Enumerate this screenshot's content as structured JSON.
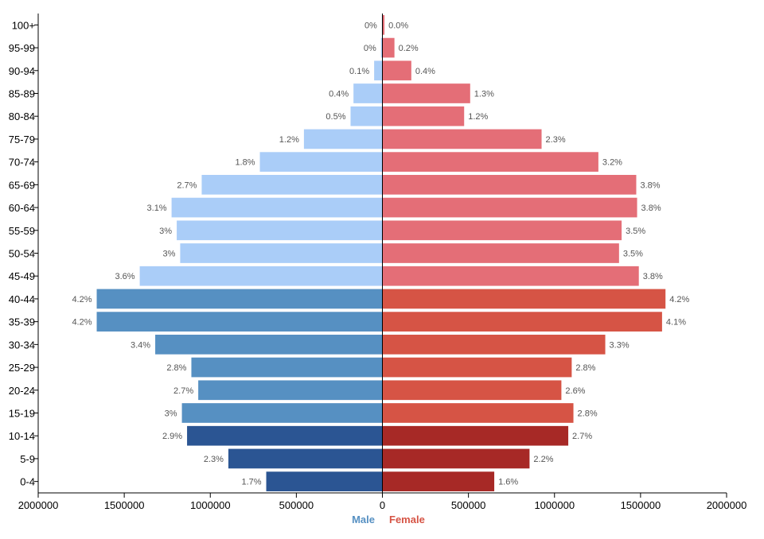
{
  "chart_data": {
    "type": "bar",
    "orientation": "horizontal",
    "categories": [
      "100+",
      "95-99",
      "90-94",
      "85-89",
      "80-84",
      "75-79",
      "70-74",
      "65-69",
      "60-64",
      "55-59",
      "50-54",
      "45-49",
      "40-44",
      "35-39",
      "30-34",
      "25-29",
      "20-24",
      "15-19",
      "10-14",
      "5-9",
      "0-4"
    ],
    "series": [
      {
        "name": "Male",
        "values": [
          3000,
          8000,
          48000,
          168000,
          185000,
          456000,
          712000,
          1050000,
          1225000,
          1195000,
          1175000,
          1410000,
          1660000,
          1660000,
          1320000,
          1110000,
          1070000,
          1165000,
          1135000,
          895000,
          675000
        ],
        "percent_labels": [
          "0%",
          "0%",
          "0.1%",
          "0.4%",
          "0.5%",
          "1.2%",
          "1.8%",
          "2.7%",
          "3.1%",
          "3%",
          "3%",
          "3.6%",
          "4.2%",
          "4.2%",
          "3.4%",
          "2.8%",
          "2.7%",
          "3%",
          "2.9%",
          "2.3%",
          "1.7%"
        ]
      },
      {
        "name": "Female",
        "values": [
          12000,
          70000,
          168000,
          510000,
          475000,
          925000,
          1255000,
          1475000,
          1480000,
          1390000,
          1375000,
          1490000,
          1645000,
          1625000,
          1295000,
          1100000,
          1040000,
          1110000,
          1080000,
          855000,
          650000
        ],
        "percent_labels": [
          "0.0%",
          "0.2%",
          "0.4%",
          "1.3%",
          "1.2%",
          "2.3%",
          "3.2%",
          "3.8%",
          "3.8%",
          "3.5%",
          "3.5%",
          "3.8%",
          "4.2%",
          "4.1%",
          "3.3%",
          "2.8%",
          "2.6%",
          "2.8%",
          "2.7%",
          "2.2%",
          "1.6%"
        ]
      }
    ],
    "colors": {
      "male_old": "#aacdf8",
      "male_mid": "#5690c2",
      "male_young": "#2b5593",
      "female_old": "#e46e77",
      "female_mid": "#d65445",
      "female_young": "#a72926"
    },
    "xticks": [
      2000000,
      1500000,
      1000000,
      500000,
      0,
      500000,
      1000000,
      1500000,
      2000000
    ],
    "xtick_labels": [
      "2000000",
      "1500000",
      "1000000",
      "500000",
      "0",
      "500000",
      "1000000",
      "1500000",
      "2000000"
    ],
    "xlim": [
      -2000000,
      2000000
    ],
    "legend": {
      "male": "Male",
      "female": "Female",
      "placement": "bottom-center"
    },
    "title": "",
    "xlabel": "",
    "ylabel": "",
    "grid": false
  }
}
